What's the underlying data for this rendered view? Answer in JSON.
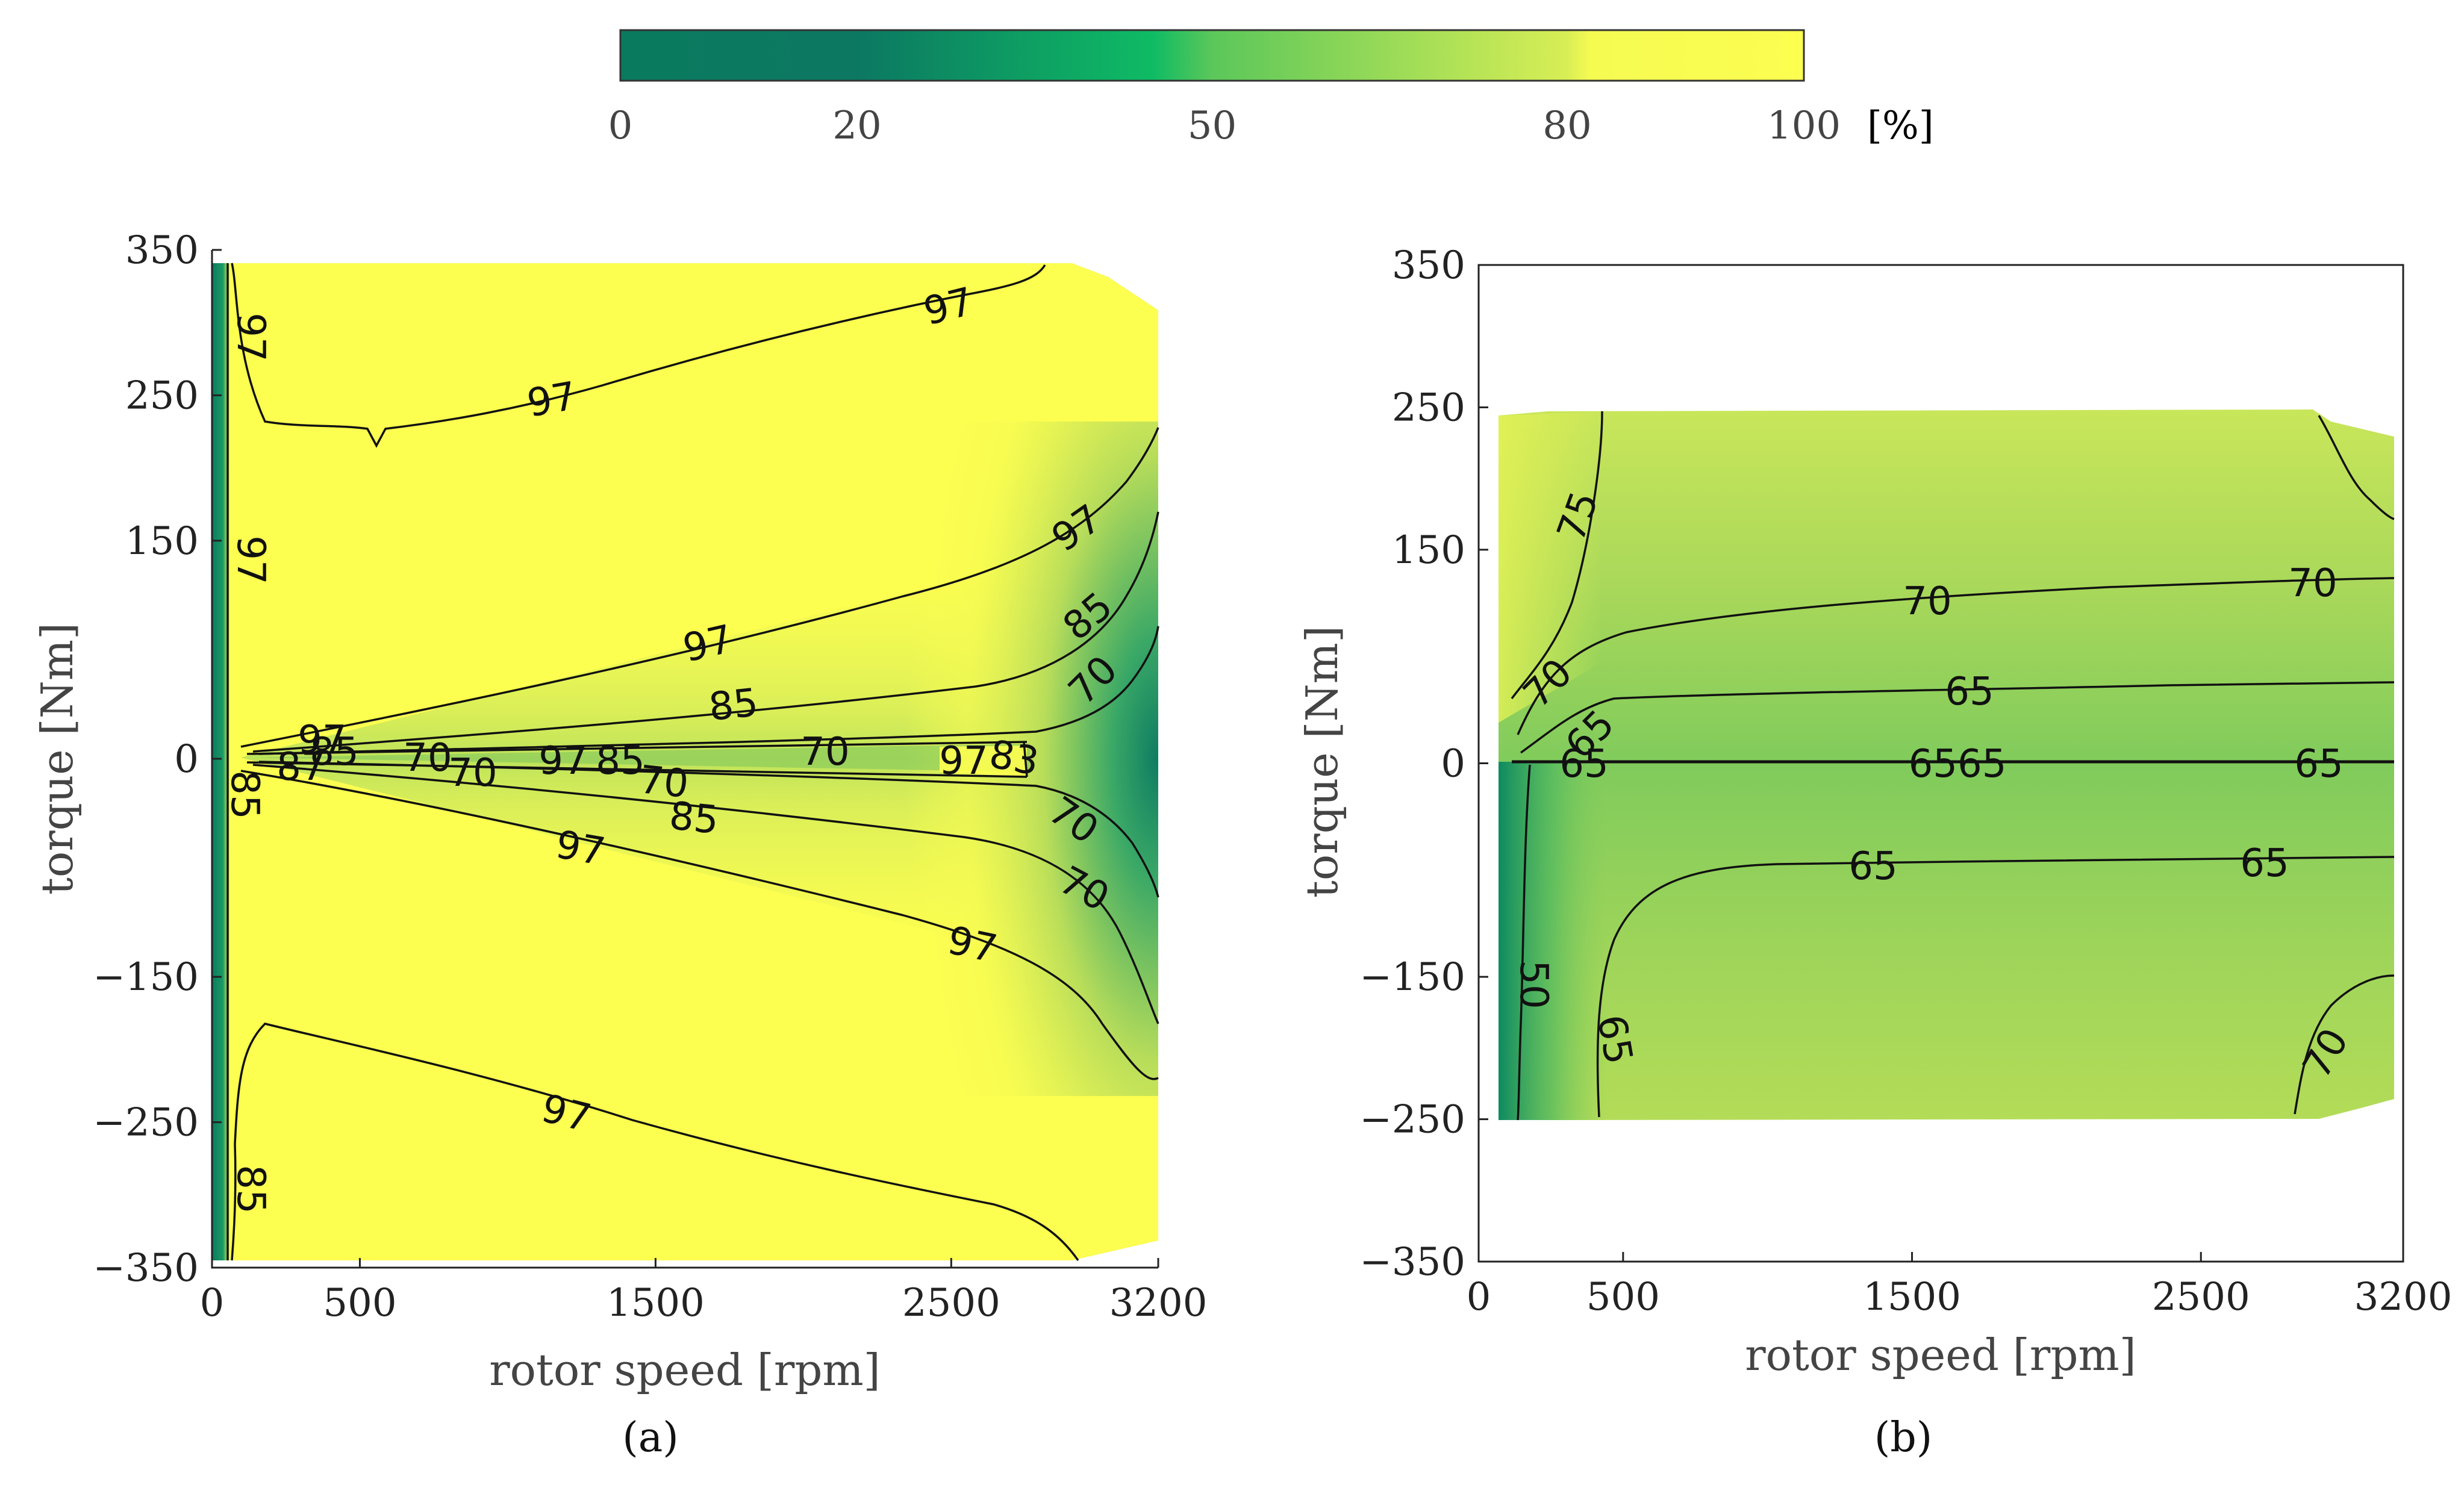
{
  "colorbar": {
    "ticks": [
      "0",
      "20",
      "50",
      "80",
      "100"
    ],
    "tick_values": [
      0,
      20,
      50,
      80,
      100
    ],
    "unit": "[%]",
    "colors": [
      "#0a7a5e",
      "#0c7862",
      "#0fbb64",
      "#a6d554",
      "#fcfe50"
    ]
  },
  "chart_data": [
    {
      "type": "contour",
      "panel_label": "(a)",
      "xlabel": "rotor speed [rpm]",
      "ylabel": "torque [Nm]",
      "xlim": [
        0,
        3200
      ],
      "ylim": [
        -350,
        350
      ],
      "xticks": [
        "0",
        "500",
        "1500",
        "2500",
        "3200"
      ],
      "yticks": [
        "350",
        "250",
        "150",
        "0",
        "−150",
        "−250",
        "−350"
      ],
      "contour_levels": [
        97,
        85,
        70
      ],
      "contour_labels": [
        "97",
        "97",
        "97",
        "97",
        "97",
        "97",
        "97",
        "85",
        "85",
        "85",
        "70",
        "70",
        "70",
        "70",
        "70",
        "70",
        "97",
        "85",
        "97",
        "83",
        "85",
        "87",
        "97",
        "70",
        "85",
        "97",
        "97",
        "85"
      ]
    },
    {
      "type": "contour",
      "panel_label": "(b)",
      "xlabel": "rotor speed [rpm]",
      "ylabel": "torque [Nm]",
      "xlim": [
        0,
        3200
      ],
      "ylim": [
        -350,
        350
      ],
      "xticks": [
        "0",
        "500",
        "1500",
        "2500",
        "3200"
      ],
      "yticks": [
        "350",
        "250",
        "150",
        "0",
        "−150",
        "−250",
        "−350"
      ],
      "contour_levels": [
        75,
        70,
        65,
        50
      ],
      "contour_labels": [
        "75",
        "70",
        "70",
        "70",
        "65",
        "65",
        "65",
        "6565",
        "65",
        "65",
        "65",
        "65",
        "50",
        "65",
        "70"
      ]
    }
  ]
}
